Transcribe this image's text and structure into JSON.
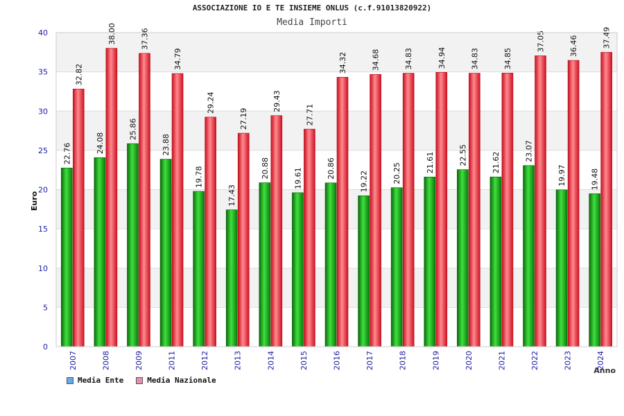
{
  "chart_data": {
    "type": "bar",
    "title": "ASSOCIAZIONE IO E TE INSIEME ONLUS (c.f.91013820922)",
    "subtitle": "Media Importi",
    "xlabel": "Anno",
    "ylabel": "Euro",
    "ylim": [
      0,
      40
    ],
    "yticks": [
      0,
      5,
      10,
      15,
      20,
      25,
      30,
      35,
      40
    ],
    "grid": true,
    "legend_position": "bottom-left",
    "categories": [
      "2007",
      "2008",
      "2009",
      "2011",
      "2012",
      "2013",
      "2014",
      "2015",
      "2016",
      "2017",
      "2018",
      "2019",
      "2020",
      "2021",
      "2022",
      "2023",
      "2024"
    ],
    "series": [
      {
        "name": "Media Ente",
        "legend_color": "#66aaee",
        "bar_color": "#1fa81f",
        "values": [
          22.76,
          24.08,
          25.86,
          23.88,
          19.78,
          17.43,
          20.88,
          19.61,
          20.86,
          19.22,
          20.25,
          21.61,
          22.55,
          21.62,
          23.07,
          19.97,
          19.48
        ],
        "labels": [
          "22.76",
          "24.08",
          "25.86",
          "23.88",
          "19.78",
          "17.43",
          "20.88",
          "19.61",
          "20.86",
          "19.22",
          "20.25",
          "21.61",
          "22.55",
          "21.62",
          "23.07",
          "19.97",
          "19.48"
        ]
      },
      {
        "name": "Media Nazionale",
        "legend_color": "#e88fb0",
        "bar_color": "#ee2233",
        "values": [
          32.82,
          38.0,
          37.36,
          34.79,
          29.24,
          27.19,
          29.43,
          27.71,
          34.32,
          34.68,
          34.83,
          34.94,
          34.83,
          34.85,
          37.05,
          36.46,
          37.49
        ],
        "labels": [
          "32.82",
          "38.00",
          "37.36",
          "34.79",
          "29.24",
          "27.19",
          "29.43",
          "27.71",
          "34.32",
          "34.68",
          "34.83",
          "34.94",
          "34.83",
          "34.85",
          "37.05",
          "36.46",
          "37.49"
        ]
      }
    ]
  }
}
